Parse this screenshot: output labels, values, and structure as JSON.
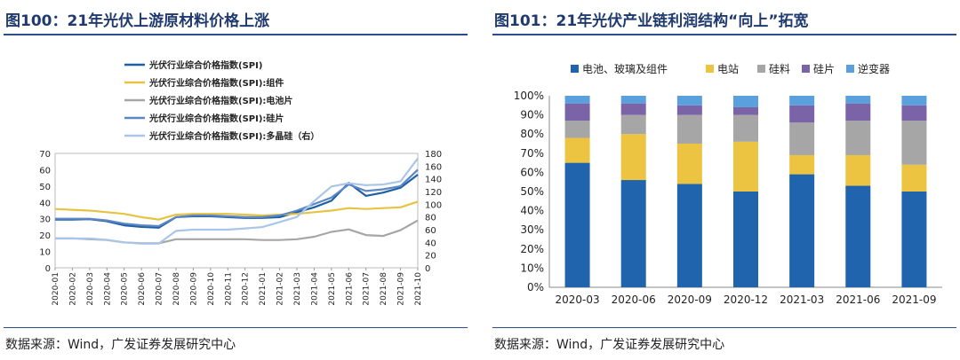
{
  "left": {
    "title": "图100：21年光伏上游原材料价格上涨",
    "source": "数据来源：Wind，广发证券发展研究中心"
  },
  "right": {
    "title": "图101：21年光伏产业链利润结构“向上”拓宽",
    "source": "数据来源：Wind，广发证券发展研究中心"
  },
  "chart_data": [
    {
      "type": "line",
      "title": "21年光伏上游原材料价格上涨",
      "x": [
        "2020-01",
        "2020-02",
        "2020-03",
        "2020-04",
        "2020-05",
        "2020-06",
        "2020-07",
        "2020-08",
        "2020-09",
        "2020-10",
        "2020-11",
        "2020-12",
        "2021-01",
        "2021-02",
        "2021-03",
        "2021-04",
        "2021-05",
        "2021-06",
        "2021-07",
        "2021-08",
        "2021-09",
        "2021-10"
      ],
      "ylim": [
        0,
        70
      ],
      "y2lim": [
        0,
        180
      ],
      "yticks": [
        "0",
        "10",
        "20",
        "30",
        "40",
        "50",
        "60",
        "70"
      ],
      "y2ticks": [
        "0",
        "20",
        "40",
        "60",
        "80",
        "100",
        "120",
        "140",
        "160",
        "180"
      ],
      "series": [
        {
          "name": "光伏行业综合价格指数(SPI)",
          "color": "#1f5fa3",
          "axis": "left",
          "values": [
            29.5,
            29.5,
            29.8,
            28.5,
            26,
            25,
            24.5,
            31,
            31.5,
            31.5,
            31,
            30.5,
            30.5,
            31,
            34,
            37,
            41,
            52,
            44,
            46,
            49,
            57
          ]
        },
        {
          "name": "光伏行业综合价格指数(SPI):组件",
          "color": "#e6c441",
          "axis": "left",
          "values": [
            36,
            35.5,
            35,
            34,
            33,
            31,
            29.5,
            32.5,
            33,
            33,
            33,
            32.5,
            32,
            32.5,
            33,
            34,
            35,
            36.5,
            36,
            36.5,
            37,
            40.5
          ]
        },
        {
          "name": "光伏行业综合价格指数(SPI):电池片",
          "color": "#a6a6a6",
          "axis": "left",
          "values": [
            18,
            18,
            17.5,
            17,
            15.5,
            15,
            15,
            17.5,
            17.5,
            17.5,
            17.5,
            17.5,
            17,
            17,
            17.5,
            19,
            22,
            23.5,
            20,
            19.5,
            23,
            29
          ]
        },
        {
          "name": "光伏行业综合价格指数(SPI):硅片",
          "color": "#5b87c4",
          "axis": "left",
          "values": [
            30,
            30,
            30,
            29,
            27,
            26,
            25.5,
            31,
            32,
            32,
            31.5,
            31,
            31,
            32,
            35,
            39,
            43,
            51,
            47,
            48,
            50,
            60
          ]
        },
        {
          "name": "光伏行业综合价格指数(SPI):多晶硅（右）",
          "color": "#a9c6e8",
          "axis": "right",
          "values": [
            46,
            46,
            46,
            44,
            40,
            38,
            38,
            58,
            60,
            60,
            60,
            62,
            64,
            72,
            80,
            105,
            128,
            133,
            130,
            131,
            136,
            172
          ]
        }
      ]
    },
    {
      "type": "bar",
      "stacked": true,
      "title": "21年光伏产业链利润结构“向上”拓宽",
      "categories": [
        "2020-03",
        "2020-06",
        "2020-09",
        "2020-12",
        "2021-03",
        "2021-06",
        "2021-09"
      ],
      "yticks": [
        "0%",
        "10%",
        "20%",
        "30%",
        "40%",
        "50%",
        "60%",
        "70%",
        "80%",
        "90%",
        "100%"
      ],
      "ylim": [
        0,
        100
      ],
      "series": [
        {
          "name": "电池、玻璃及组件",
          "color": "#1f64ad",
          "values": [
            65,
            56,
            54,
            50,
            59,
            53,
            50
          ]
        },
        {
          "name": "电站",
          "color": "#ecc441",
          "values": [
            13,
            24,
            21,
            26,
            10,
            16,
            14
          ]
        },
        {
          "name": "硅料",
          "color": "#a6a6a6",
          "values": [
            9,
            10,
            15,
            14,
            17,
            18,
            23
          ]
        },
        {
          "name": "硅片",
          "color": "#7b63a8",
          "values": [
            9,
            6,
            5,
            4,
            9,
            9,
            8
          ]
        },
        {
          "name": "逆变器",
          "color": "#5aa0dc",
          "values": [
            4,
            4,
            5,
            6,
            5,
            4,
            5
          ]
        }
      ]
    }
  ]
}
